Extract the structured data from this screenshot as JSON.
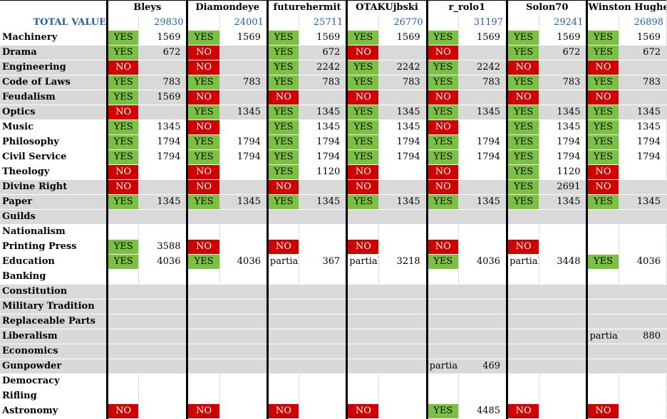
{
  "table": {
    "players": [
      "Bleys",
      "Diamondeye",
      "futurehermit",
      "OTAKUjbski",
      "r_rolo1",
      "Solon70",
      "Winston Hughes"
    ],
    "total_label": "TOTAL VALUE",
    "totals": [
      "29830",
      "24001",
      "25711",
      "26770",
      "31197",
      "29241",
      "26898"
    ],
    "rows": [
      {
        "tech": "Machinery",
        "shade": "w",
        "cells": [
          [
            "YES",
            "1569"
          ],
          [
            "YES",
            "1569"
          ],
          [
            "YES",
            "1569"
          ],
          [
            "YES",
            "1569"
          ],
          [
            "YES",
            "1569"
          ],
          [
            "YES",
            "1569"
          ],
          [
            "YES",
            "1569"
          ]
        ]
      },
      {
        "tech": "Drama",
        "shade": "g",
        "cells": [
          [
            "YES",
            "672"
          ],
          [
            "NO",
            ""
          ],
          [
            "YES",
            "672"
          ],
          [
            "NO",
            ""
          ],
          [
            "NO",
            ""
          ],
          [
            "YES",
            "672"
          ],
          [
            "YES",
            "672"
          ]
        ]
      },
      {
        "tech": "Engineering",
        "shade": "g",
        "cells": [
          [
            "NO",
            ""
          ],
          [
            "NO",
            ""
          ],
          [
            "YES",
            "2242"
          ],
          [
            "YES",
            "2242"
          ],
          [
            "YES",
            "2242"
          ],
          [
            "NO",
            ""
          ],
          [
            "NO",
            ""
          ]
        ]
      },
      {
        "tech": "Code of Laws",
        "shade": "g",
        "cells": [
          [
            "YES",
            "783"
          ],
          [
            "YES",
            "783"
          ],
          [
            "YES",
            "783"
          ],
          [
            "YES",
            "783"
          ],
          [
            "YES",
            "783"
          ],
          [
            "YES",
            "783"
          ],
          [
            "YES",
            "783"
          ]
        ]
      },
      {
        "tech": "Feudalism",
        "shade": "g",
        "cells": [
          [
            "YES",
            "1569"
          ],
          [
            "NO",
            ""
          ],
          [
            "NO",
            ""
          ],
          [
            "NO",
            ""
          ],
          [
            "NO",
            ""
          ],
          [
            "NO",
            ""
          ],
          [
            "NO",
            ""
          ]
        ]
      },
      {
        "tech": "Optics",
        "shade": "g",
        "cells": [
          [
            "NO",
            ""
          ],
          [
            "YES",
            "1345"
          ],
          [
            "YES",
            "1345"
          ],
          [
            "YES",
            "1345"
          ],
          [
            "YES",
            "1345"
          ],
          [
            "YES",
            "1345"
          ],
          [
            "YES",
            "1345"
          ]
        ]
      },
      {
        "tech": "Music",
        "shade": "w",
        "cells": [
          [
            "YES",
            "1345"
          ],
          [
            "NO",
            ""
          ],
          [
            "YES",
            "1345"
          ],
          [
            "YES",
            "1345"
          ],
          [
            "NO",
            ""
          ],
          [
            "YES",
            "1345"
          ],
          [
            "YES",
            "1345"
          ]
        ]
      },
      {
        "tech": "Philosophy",
        "shade": "w",
        "cells": [
          [
            "YES",
            "1794"
          ],
          [
            "YES",
            "1794"
          ],
          [
            "YES",
            "1794"
          ],
          [
            "YES",
            "1794"
          ],
          [
            "YES",
            "1794"
          ],
          [
            "YES",
            "1794"
          ],
          [
            "YES",
            "1794"
          ]
        ]
      },
      {
        "tech": "Civil Service",
        "shade": "w",
        "cells": [
          [
            "YES",
            "1794"
          ],
          [
            "YES",
            "1794"
          ],
          [
            "YES",
            "1794"
          ],
          [
            "YES",
            "1794"
          ],
          [
            "YES",
            "1794"
          ],
          [
            "YES",
            "1794"
          ],
          [
            "YES",
            "1794"
          ]
        ]
      },
      {
        "tech": "Theology",
        "shade": "w",
        "cells": [
          [
            "NO",
            ""
          ],
          [
            "NO",
            ""
          ],
          [
            "YES",
            "1120"
          ],
          [
            "NO",
            ""
          ],
          [
            "NO",
            ""
          ],
          [
            "YES",
            "1120"
          ],
          [
            "NO",
            ""
          ]
        ]
      },
      {
        "tech": "Divine Right",
        "shade": "g",
        "cells": [
          [
            "NO",
            ""
          ],
          [
            "NO",
            ""
          ],
          [
            "NO",
            ""
          ],
          [
            "NO",
            ""
          ],
          [
            "NO",
            ""
          ],
          [
            "YES",
            "2691"
          ],
          [
            "NO",
            ""
          ]
        ]
      },
      {
        "tech": "Paper",
        "shade": "g",
        "cells": [
          [
            "YES",
            "1345"
          ],
          [
            "YES",
            "1345"
          ],
          [
            "YES",
            "1345"
          ],
          [
            "YES",
            "1345"
          ],
          [
            "YES",
            "1345"
          ],
          [
            "YES",
            "1345"
          ],
          [
            "YES",
            "1345"
          ]
        ]
      },
      {
        "tech": "Guilds",
        "shade": "g",
        "cells": [
          [
            "",
            ""
          ],
          [
            "",
            ""
          ],
          [
            "",
            ""
          ],
          [
            "",
            ""
          ],
          [
            "",
            ""
          ],
          [
            "",
            ""
          ],
          [
            "",
            ""
          ]
        ]
      },
      {
        "tech": "Nationalism",
        "shade": "w",
        "cells": [
          [
            "",
            ""
          ],
          [
            "",
            ""
          ],
          [
            "",
            ""
          ],
          [
            "",
            ""
          ],
          [
            "",
            ""
          ],
          [
            "",
            ""
          ],
          [
            "",
            ""
          ]
        ]
      },
      {
        "tech": "Printing Press",
        "shade": "w",
        "cells": [
          [
            "YES",
            "3588"
          ],
          [
            "NO",
            ""
          ],
          [
            "NO",
            ""
          ],
          [
            "NO",
            ""
          ],
          [
            "NO",
            ""
          ],
          [
            "NO",
            ""
          ],
          [
            "",
            ""
          ]
        ]
      },
      {
        "tech": "Education",
        "shade": "w",
        "cells": [
          [
            "YES",
            "4036"
          ],
          [
            "YES",
            "4036"
          ],
          [
            "partial",
            "367"
          ],
          [
            "partial",
            "3218"
          ],
          [
            "YES",
            "4036"
          ],
          [
            "partial",
            "3448"
          ],
          [
            "YES",
            "4036"
          ]
        ]
      },
      {
        "tech": "Banking",
        "shade": "w",
        "cells": [
          [
            "",
            ""
          ],
          [
            "",
            ""
          ],
          [
            "",
            ""
          ],
          [
            "",
            ""
          ],
          [
            "",
            ""
          ],
          [
            "",
            ""
          ],
          [
            "",
            ""
          ]
        ]
      },
      {
        "tech": "Constitution",
        "shade": "g",
        "cells": [
          [
            "",
            ""
          ],
          [
            "",
            ""
          ],
          [
            "",
            ""
          ],
          [
            "",
            ""
          ],
          [
            "",
            ""
          ],
          [
            "",
            ""
          ],
          [
            "",
            ""
          ]
        ]
      },
      {
        "tech": "Military Tradition",
        "shade": "g",
        "cells": [
          [
            "",
            ""
          ],
          [
            "",
            ""
          ],
          [
            "",
            ""
          ],
          [
            "",
            ""
          ],
          [
            "",
            ""
          ],
          [
            "",
            ""
          ],
          [
            "",
            ""
          ]
        ]
      },
      {
        "tech": "Replaceable Parts",
        "shade": "g",
        "cells": [
          [
            "",
            ""
          ],
          [
            "",
            ""
          ],
          [
            "",
            ""
          ],
          [
            "",
            ""
          ],
          [
            "",
            ""
          ],
          [
            "",
            ""
          ],
          [
            "",
            ""
          ]
        ]
      },
      {
        "tech": "Liberalism",
        "shade": "g",
        "cells": [
          [
            "",
            ""
          ],
          [
            "",
            ""
          ],
          [
            "",
            ""
          ],
          [
            "",
            ""
          ],
          [
            "",
            ""
          ],
          [
            "",
            ""
          ],
          [
            "partial",
            "880"
          ]
        ]
      },
      {
        "tech": "Economics",
        "shade": "g",
        "cells": [
          [
            "",
            ""
          ],
          [
            "",
            ""
          ],
          [
            "",
            ""
          ],
          [
            "",
            ""
          ],
          [
            "",
            ""
          ],
          [
            "",
            ""
          ],
          [
            "",
            ""
          ]
        ]
      },
      {
        "tech": "Gunpowder",
        "shade": "g",
        "cells": [
          [
            "",
            ""
          ],
          [
            "",
            ""
          ],
          [
            "",
            ""
          ],
          [
            "",
            ""
          ],
          [
            "partial",
            "469"
          ],
          [
            "",
            ""
          ],
          [
            "",
            ""
          ]
        ]
      },
      {
        "tech": "Democracy",
        "shade": "w",
        "cells": [
          [
            "",
            ""
          ],
          [
            "",
            ""
          ],
          [
            "",
            ""
          ],
          [
            "",
            ""
          ],
          [
            "",
            ""
          ],
          [
            "",
            ""
          ],
          [
            "",
            ""
          ]
        ]
      },
      {
        "tech": "Rifling",
        "shade": "w",
        "cells": [
          [
            "",
            ""
          ],
          [
            "",
            ""
          ],
          [
            "",
            ""
          ],
          [
            "",
            ""
          ],
          [
            "",
            ""
          ],
          [
            "",
            ""
          ],
          [
            "",
            ""
          ]
        ]
      },
      {
        "tech": "Astronomy",
        "shade": "w",
        "cells": [
          [
            "NO",
            ""
          ],
          [
            "NO",
            ""
          ],
          [
            "NO",
            ""
          ],
          [
            "NO",
            ""
          ],
          [
            "YES",
            "4485"
          ],
          [
            "NO",
            ""
          ],
          [
            "NO",
            ""
          ]
        ]
      }
    ]
  }
}
